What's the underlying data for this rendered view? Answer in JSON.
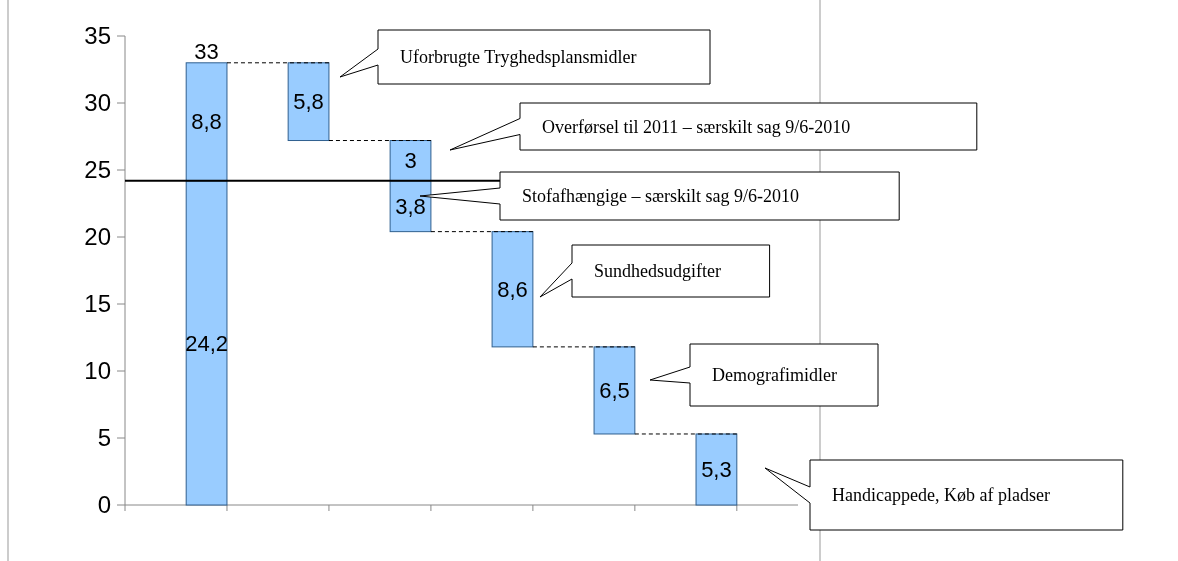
{
  "chart_data": {
    "type": "bar",
    "categories": [
      null,
      null,
      null,
      null,
      null,
      null
    ],
    "ylim": [
      0,
      35
    ],
    "yticks": [
      0,
      5,
      10,
      15,
      20,
      25,
      30,
      35
    ],
    "series": [
      {
        "color": "#99ccff",
        "values": [
          24.2,
          5.8,
          3.8,
          8.6,
          6.5,
          5.3
        ],
        "base": [
          0,
          27.2,
          20.4,
          11.8,
          5.3,
          0
        ],
        "value_labels": [
          "24,2",
          "5,8",
          "3,8",
          "8,6",
          "6,5",
          "5,3"
        ]
      },
      {
        "color": "#99ccff",
        "values": [
          8.8,
          null,
          3,
          null,
          null,
          null
        ],
        "base": [
          24.2,
          null,
          24.2,
          null,
          null,
          null
        ],
        "value_labels": [
          "8,8",
          null,
          "3",
          null,
          null,
          null
        ]
      }
    ],
    "totals": [
      "33",
      null,
      null,
      null,
      null,
      null
    ],
    "ref_lines": [
      {
        "axis": "y",
        "value": 24.2,
        "color": "#000000"
      }
    ],
    "annotations": [
      "Uforbrugte Tryghedsplansmidler",
      "Overførsel til 2011 – særskilt sag 9/6-2010",
      "Stofafhængige – særskilt sag 9/6-2010",
      "Sundhedsudgifter",
      "Demografimidler",
      "Handicappede, Køb af pladser"
    ],
    "grid": false
  }
}
